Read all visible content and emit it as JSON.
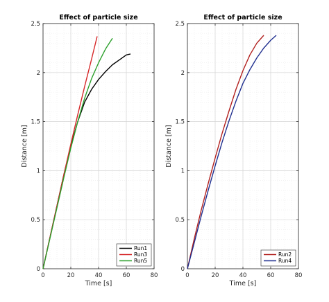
{
  "chart_data": [
    {
      "type": "line",
      "title": "Effect of particle size",
      "xlabel": "Time [s]",
      "ylabel": "Distance [m]",
      "xlim": [
        0,
        80
      ],
      "ylim": [
        0,
        2.5
      ],
      "xticks": [
        "0",
        "20",
        "40",
        "60",
        "80"
      ],
      "yticks": [
        "0",
        "0.5",
        "1",
        "1.5",
        "2",
        "2.5"
      ],
      "grid": true,
      "legend_position": "bottom-right",
      "series": [
        {
          "name": "Run1",
          "color": "#000000",
          "x": [
            0,
            5,
            10,
            15,
            20,
            25,
            30,
            35,
            40,
            45,
            50,
            55,
            60,
            63
          ],
          "y": [
            0,
            0.32,
            0.64,
            0.96,
            1.25,
            1.5,
            1.7,
            1.83,
            1.93,
            2.01,
            2.08,
            2.13,
            2.18,
            2.19
          ]
        },
        {
          "name": "Run3",
          "color": "#d62728",
          "x": [
            0,
            5,
            10,
            15,
            20,
            25,
            30,
            35,
            39
          ],
          "y": [
            0,
            0.32,
            0.64,
            0.96,
            1.27,
            1.57,
            1.86,
            2.14,
            2.37
          ]
        },
        {
          "name": "Run5",
          "color": "#2ca02c",
          "x": [
            0,
            5,
            10,
            15,
            20,
            25,
            30,
            35,
            40,
            45,
            50
          ],
          "y": [
            0,
            0.31,
            0.62,
            0.93,
            1.23,
            1.5,
            1.74,
            1.94,
            2.1,
            2.24,
            2.35
          ]
        }
      ]
    },
    {
      "type": "line",
      "title": "Effect of particle size",
      "xlabel": "Time [s]",
      "ylabel": "Distance [m]",
      "xlim": [
        0,
        80
      ],
      "ylim": [
        0,
        2.5
      ],
      "xticks": [
        "0",
        "20",
        "40",
        "60",
        "80"
      ],
      "yticks": [
        "0",
        "0.5",
        "1",
        "1.5",
        "2",
        "2.5"
      ],
      "grid": true,
      "legend_position": "bottom-right",
      "series": [
        {
          "name": "Run2",
          "color": "#b2201e",
          "x": [
            0,
            5,
            10,
            15,
            20,
            25,
            30,
            35,
            40,
            45,
            50,
            55
          ],
          "y": [
            0,
            0.31,
            0.6,
            0.87,
            1.13,
            1.38,
            1.61,
            1.83,
            2.02,
            2.18,
            2.3,
            2.38
          ]
        },
        {
          "name": "Run4",
          "color": "#1f2f8f",
          "x": [
            0,
            5,
            10,
            15,
            20,
            25,
            30,
            35,
            40,
            45,
            50,
            55,
            60,
            64
          ],
          "y": [
            0,
            0.27,
            0.54,
            0.8,
            1.05,
            1.29,
            1.51,
            1.71,
            1.89,
            2.03,
            2.15,
            2.25,
            2.33,
            2.38
          ]
        }
      ]
    }
  ]
}
